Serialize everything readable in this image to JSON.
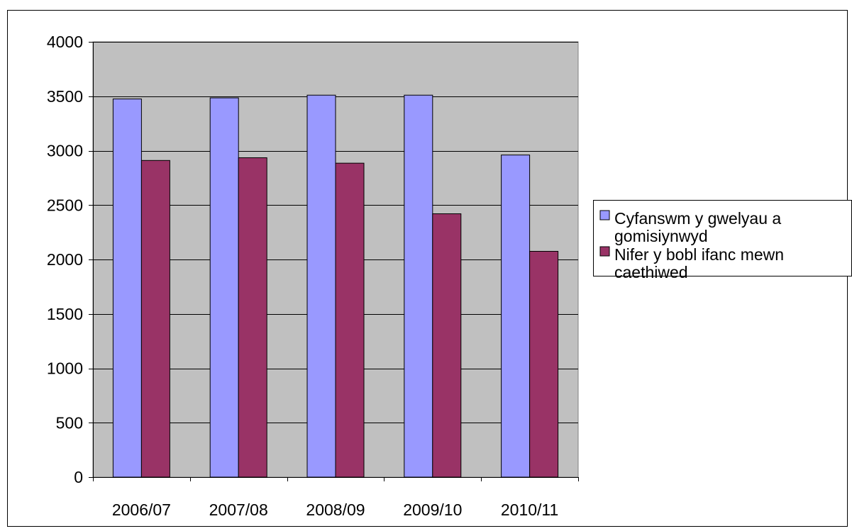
{
  "chart_data": {
    "type": "bar",
    "categories": [
      "2006/07",
      "2007/08",
      "2008/09",
      "2009/10",
      "2010/11"
    ],
    "series": [
      {
        "name": "Cyfanswm y gwelyau a gomisiynwyd",
        "legend_lines": [
          "Cyfanswm y gwelyau a",
          "gomisiynwyd"
        ],
        "color": "#9999ff",
        "values": [
          3475,
          3485,
          3510,
          3510,
          2960
        ]
      },
      {
        "name": "Nifer y bobl ifanc mewn caethiwed",
        "legend_lines": [
          "Nifer y bobl ifanc mewn",
          "caethiwed"
        ],
        "color": "#993366",
        "values": [
          2910,
          2935,
          2885,
          2420,
          2075
        ]
      }
    ],
    "title": "",
    "xlabel": "",
    "ylabel": "",
    "ylim": [
      0,
      4000
    ],
    "yticks": [
      0,
      500,
      1000,
      1500,
      2000,
      2500,
      3000,
      3500,
      4000
    ],
    "ytick_labels": [
      "0",
      "500",
      "1000",
      "1500",
      "2000",
      "2500",
      "3000",
      "3500",
      "4000"
    ],
    "grid": true,
    "plot_background": "#c0c0c0",
    "legend_position": "right"
  }
}
